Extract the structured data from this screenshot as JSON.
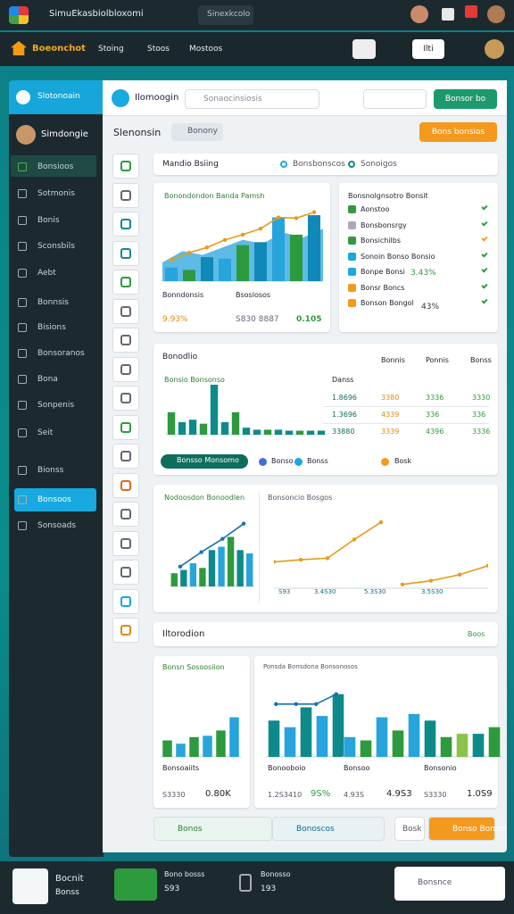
{
  "topbar": {
    "title": "SimuEkasbiolbloxomi",
    "search": "Sinexkcolo"
  },
  "navbar": {
    "brand": "Boeonchot",
    "tabs": [
      "Stoing",
      "Stoos",
      "Mostoos"
    ],
    "button": "Ilti"
  },
  "sidebar": {
    "header": "Slotonoain",
    "user": "Simdongie",
    "items": [
      "Bonsioos",
      "Sotmonis",
      "Bonis",
      "Sconsbils",
      "Aebt",
      "Bonnsis",
      "Bisions",
      "Bonsoranos",
      "Bona",
      "Sonpenis",
      "Seit",
      "Bionss",
      "Bonsoos",
      "Sonsoads"
    ]
  },
  "header": {
    "title": "Ilomoogin",
    "search": "Sonaocinsiosis",
    "button": "Bonsor bo"
  },
  "page": {
    "title": "Slenonsin",
    "chip": "Bonony",
    "action": "Bons bonsios"
  },
  "overview": {
    "title": "Mandio Bsiing",
    "legend": [
      "Bonsbonscos",
      "Sonoigos"
    ],
    "stats": [
      {
        "label": "Bonndonsis",
        "value": "9.93%"
      },
      {
        "label": "Bsoslosos",
        "value": "S830 8887"
      }
    ],
    "highlight": "0.105"
  },
  "list": {
    "title": "Bonsnolgnsotro Bonsit",
    "items": [
      "Aonstoo",
      "Bonsbonsrgy",
      "Bonsichilbs",
      "Sonoin Bonso Bonsio",
      "Bonpe Bonsi",
      "Bonsr Boncs",
      "Bonson Bongol"
    ],
    "values": [
      "3.43%",
      "43%"
    ]
  },
  "table": {
    "title": "Bonodlio",
    "subtitle": "Bonsio Bonsonso",
    "headers": [
      "Bonnis",
      "Ponnis",
      "Bonss"
    ],
    "label_col": "Danss",
    "rows": [
      [
        "1.8696",
        "3380",
        "3336",
        "3330"
      ],
      [
        "1.3696",
        "4339",
        "336",
        "336"
      ],
      [
        "33880",
        "3339",
        "4396",
        "3336"
      ]
    ],
    "chip": "Bonsso Monsomo",
    "legend": [
      "Bonso",
      "Bonss",
      "Bosk"
    ]
  },
  "panels": {
    "left": "Nodoosdon Bonoodlen",
    "right": "Bonsoncio Bosgos",
    "tags": [
      "S93",
      "3.4S30",
      "5.3S30",
      "3.5S30"
    ]
  },
  "section": {
    "title": "Iltorodion",
    "link": "Boos"
  },
  "minis": {
    "title": "Bonsn Sosoosiion",
    "subtitle": "Ponsda Bonsdona Bonsonosos",
    "items": [
      {
        "label": "Bonsoaiits",
        "a": "S3330",
        "b": "0.80K"
      },
      {
        "label": "Bonooboio",
        "a": "1.2S3410",
        "b": "9S%"
      },
      {
        "label": "Bonsoo",
        "a": "4.93S",
        "b": "4.9S3"
      },
      {
        "label": "Bonsonio",
        "a": "S3330",
        "b": "1.0S9"
      }
    ]
  },
  "buttons": [
    "Bonos",
    "Bonoscos",
    "Bosk",
    "Bonso Bonsio"
  ],
  "footer": {
    "title": "Bocnit",
    "subtitle": "Bonss",
    "card_title": "Bono bosss",
    "card_value": "S93",
    "device": "Bonosso",
    "device_value": "193",
    "search": "Bonsnce"
  },
  "charts": {
    "trend": {
      "type": "bar",
      "title": "Bonondondon Banda Pamsh",
      "ylim": [
        0,
        100
      ],
      "colors": [
        "#27a4dc",
        "#2e9a3e",
        "#1189b8"
      ],
      "area": [
        25,
        40,
        35,
        45,
        55,
        50,
        65,
        58,
        70
      ],
      "bars": [
        18,
        15,
        32,
        30,
        48,
        52,
        85,
        62,
        88
      ],
      "line": [
        28,
        38,
        45,
        55,
        62,
        70,
        85,
        84,
        92
      ]
    },
    "activity": {
      "type": "bar",
      "ylim": [
        0,
        100
      ],
      "colors": [
        "#2e9a3e",
        "#0e8a8a",
        "#0e8a8a"
      ],
      "bars": [
        45,
        25,
        30,
        22,
        100,
        25,
        45,
        14,
        10,
        10,
        10,
        8,
        8,
        8,
        8
      ]
    },
    "volume": {
      "type": "bar",
      "ylim": [
        0,
        100
      ],
      "colors": [
        "#2e9a3e",
        "#0e8a8a",
        "#27a4dc"
      ],
      "bars": [
        20,
        25,
        35,
        28,
        55,
        60,
        75,
        55,
        50
      ],
      "line": [
        30,
        52,
        72,
        95
      ]
    },
    "growth": {
      "type": "line",
      "ylim": [
        0,
        100
      ],
      "colors": [
        "#e89a1a"
      ],
      "line": [
        35,
        38,
        40,
        65,
        88
      ],
      "line2": [
        5,
        10,
        18,
        30
      ]
    },
    "mini1": {
      "type": "bar",
      "ylim": [
        0,
        100
      ],
      "colors": [
        "#2e9a3e",
        "#27a4dc"
      ],
      "bars": [
        25,
        20,
        30,
        32,
        40,
        60
      ]
    },
    "mini2": {
      "type": "bar",
      "ylim": [
        0,
        100
      ],
      "colors": [
        "#0e8a8a",
        "#27a4dc"
      ],
      "bars": [
        55,
        45,
        75,
        62,
        95
      ],
      "line": [
        80,
        80,
        80,
        95
      ]
    },
    "mini3": {
      "type": "bar",
      "ylim": [
        0,
        100
      ],
      "colors": [
        "#27a4dc",
        "#2e9a3e"
      ],
      "bars": [
        30,
        25,
        60,
        40,
        65
      ]
    },
    "mini4": {
      "type": "bar",
      "ylim": [
        0,
        100
      ],
      "colors": [
        "#0e8a8a",
        "#2e9a3e",
        "#8bc34a"
      ],
      "bars": [
        55,
        30,
        35,
        35,
        45
      ]
    }
  }
}
